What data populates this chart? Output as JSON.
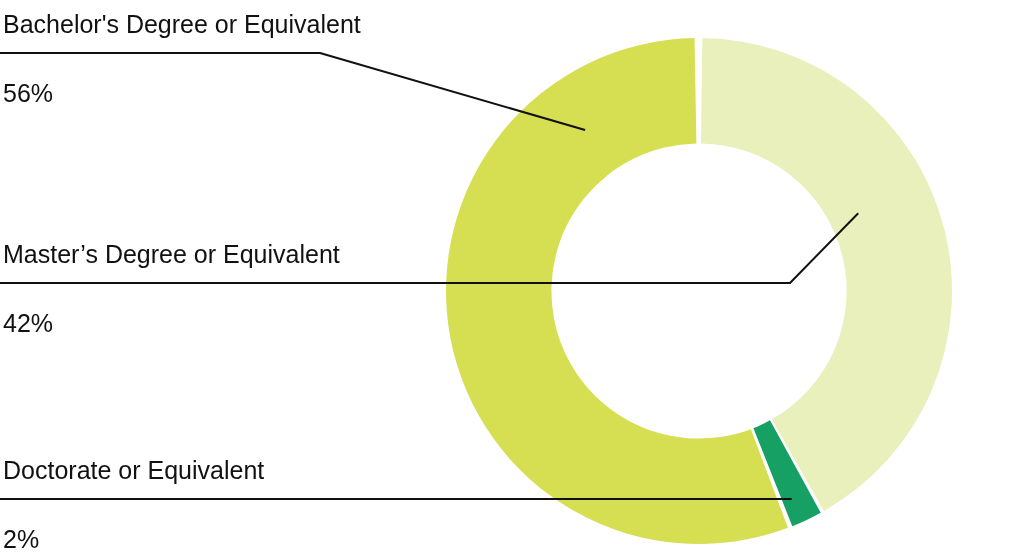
{
  "chart_data": {
    "type": "donut",
    "categories": [
      "Bachelor's Degree or Equivalent",
      "Master’s Degree or Equivalent",
      "Doctorate or Equivalent"
    ],
    "values": [
      56,
      42,
      2
    ],
    "colors": [
      "#d6de52",
      "#e9f0bc",
      "#17a063"
    ],
    "value_labels": [
      "56%",
      "42%",
      "2%"
    ]
  }
}
